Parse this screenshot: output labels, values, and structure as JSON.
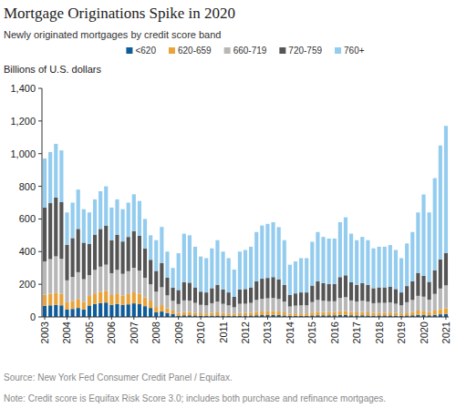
{
  "chart_data": {
    "type": "bar",
    "stacked": true,
    "grid": false,
    "legend": "top",
    "title": "Mortgage Originations Spike in 2020",
    "subtitle": "Newly originated mortgages by credit score band",
    "y_label": "Billions of U.S. dollars",
    "source": "Source: New York Fed Consumer Credit Panel / Equifax.",
    "note": "Note: Credit score is Equifax Risk Score 3.0; includes both purchase and refinance mortgages.",
    "ylim": [
      0,
      1400
    ],
    "yticks": [
      0,
      200,
      400,
      600,
      800,
      {
        "value": 1000,
        "label": "1,000"
      },
      {
        "value": 1200,
        "label": "1,200"
      },
      {
        "value": 1400,
        "label": "1,400"
      }
    ],
    "categories": [
      "2003",
      null,
      null,
      null,
      "2004",
      null,
      null,
      null,
      "2005",
      null,
      null,
      null,
      "2006",
      null,
      null,
      null,
      "2007",
      null,
      null,
      null,
      "2008",
      null,
      null,
      null,
      "2009",
      null,
      null,
      null,
      "2010",
      null,
      null,
      null,
      "2011",
      null,
      null,
      null,
      "2012",
      null,
      null,
      null,
      "2013",
      null,
      null,
      null,
      "2014",
      null,
      null,
      null,
      "2015",
      null,
      null,
      null,
      "2016",
      null,
      null,
      null,
      "2017",
      null,
      null,
      null,
      "2018",
      null,
      null,
      null,
      "2019",
      null,
      null,
      null,
      "2020",
      null,
      null,
      null,
      "2021"
    ],
    "series": [
      {
        "name": "<620",
        "color": "#0f5c9a",
        "values": [
          68,
          71,
          74,
          71,
          45,
          49,
          55,
          46,
          70,
          79,
          85,
          88,
          74,
          79,
          73,
          77,
          83,
          78,
          66,
          55,
          28,
          33,
          24,
          18,
          8,
          10,
          10,
          9,
          7,
          7,
          8,
          9,
          8,
          7,
          6,
          8,
          8,
          9,
          10,
          11,
          11,
          12,
          11,
          9,
          6,
          7,
          7,
          7,
          9,
          10,
          10,
          10,
          10,
          12,
          12,
          10,
          9,
          10,
          9,
          8,
          9,
          9,
          9,
          8,
          7,
          9,
          10,
          13,
          11,
          10,
          13,
          16,
          18
        ]
      },
      {
        "name": "620-659",
        "color": "#e9a33a",
        "values": [
          68,
          71,
          74,
          71,
          45,
          49,
          55,
          46,
          58,
          65,
          69,
          72,
          60,
          65,
          59,
          63,
          68,
          64,
          54,
          45,
          33,
          39,
          28,
          21,
          16,
          20,
          20,
          17,
          15,
          14,
          17,
          19,
          16,
          14,
          12,
          16,
          16,
          17,
          21,
          22,
          23,
          23,
          22,
          19,
          13,
          14,
          14,
          14,
          18,
          21,
          20,
          19,
          19,
          23,
          24,
          20,
          19,
          20,
          19,
          17,
          17,
          17,
          18,
          16,
          14,
          18,
          21,
          26,
          23,
          19,
          26,
          32,
          35
        ]
      },
      {
        "name": "660-719",
        "color": "#b7b7b7",
        "values": [
          204,
          212,
          223,
          214,
          134,
          147,
          164,
          139,
          128,
          144,
          154,
          160,
          134,
          144,
          132,
          140,
          150,
          142,
          120,
          100,
          94,
          110,
          80,
          60,
          55,
          71,
          70,
          60,
          52,
          50,
          59,
          66,
          56,
          50,
          41,
          56,
          57,
          60,
          73,
          78,
          80,
          81,
          77,
          66,
          45,
          48,
          50,
          50,
          64,
          73,
          69,
          67,
          67,
          81,
          85,
          71,
          66,
          69,
          66,
          59,
          60,
          60,
          62,
          57,
          50,
          63,
          73,
          90,
          90,
          77,
          102,
          126,
          140
        ]
      },
      {
        "name": "720-759",
        "color": "#555555",
        "values": [
          330,
          343,
          360,
          347,
          218,
          238,
          265,
          224,
          192,
          216,
          231,
          240,
          201,
          216,
          198,
          210,
          225,
          213,
          180,
          150,
          127,
          149,
          108,
          81,
          86,
          112,
          110,
          95,
          81,
          79,
          92,
          103,
          88,
          79,
          64,
          88,
          90,
          95,
          114,
          123,
          125,
          128,
          121,
          103,
          70,
          75,
          79,
          79,
          101,
          114,
          108,
          106,
          106,
          128,
          134,
          112,
          103,
          108,
          103,
          92,
          95,
          95,
          97,
          90,
          79,
          99,
          114,
          141,
          128,
          109,
          145,
          179,
          199
        ]
      },
      {
        "name": "760+",
        "color": "#93ccee",
        "values": [
          300,
          313,
          329,
          317,
          198,
          217,
          241,
          205,
          192,
          216,
          231,
          240,
          201,
          216,
          198,
          210,
          225,
          213,
          180,
          150,
          188,
          220,
          160,
          120,
          225,
          297,
          290,
          249,
          215,
          210,
          244,
          273,
          232,
          210,
          167,
          232,
          239,
          249,
          302,
          326,
          331,
          336,
          319,
          273,
          186,
          196,
          210,
          210,
          268,
          302,
          283,
          278,
          278,
          336,
          355,
          297,
          273,
          283,
          273,
          244,
          249,
          249,
          254,
          239,
          210,
          261,
          302,
          370,
          498,
          425,
          564,
          697,
          778
        ]
      }
    ]
  }
}
